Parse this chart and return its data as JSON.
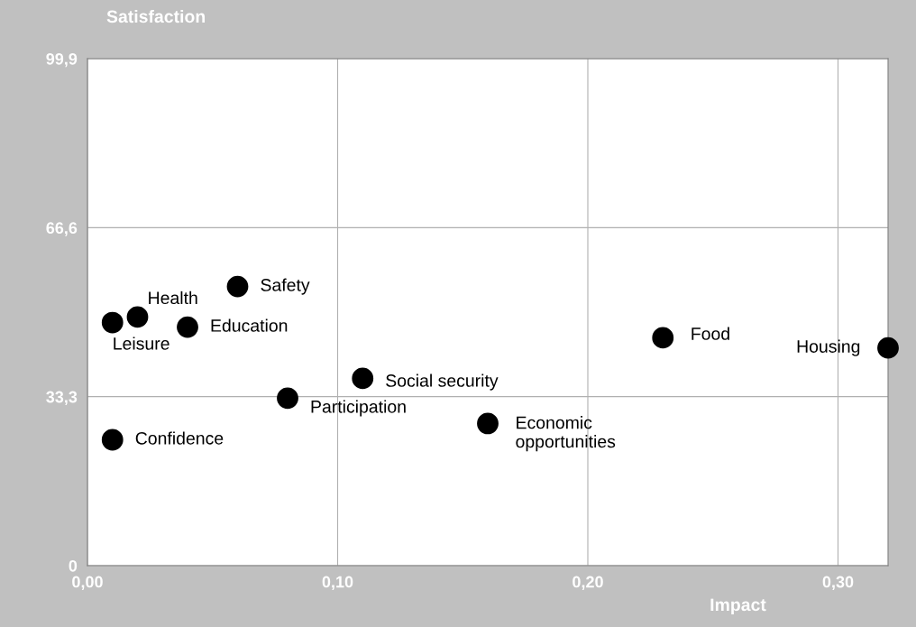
{
  "chart_data": {
    "type": "scatter",
    "xlabel": "Impact",
    "ylabel": "Satisfaction",
    "series": [
      {
        "name": "Leisure",
        "color": "#000000",
        "x": [
          0.01
        ],
        "values": [
          47.9
        ]
      },
      {
        "name": "Health",
        "color": "#000000",
        "x": [
          0.02
        ],
        "values": [
          49.0
        ]
      },
      {
        "name": "Education",
        "color": "#000000",
        "x": [
          0.04
        ],
        "values": [
          47.0
        ]
      },
      {
        "name": "Safety",
        "color": "#000000",
        "x": [
          0.06
        ],
        "values": [
          55.0
        ]
      },
      {
        "name": "Participation",
        "color": "#000000",
        "x": [
          0.08
        ],
        "values": [
          33.0
        ]
      },
      {
        "name": "Social security",
        "color": "#000000",
        "x": [
          0.11
        ],
        "values": [
          36.9
        ]
      },
      {
        "name": "Confidence",
        "color": "#000000",
        "x": [
          0.01
        ],
        "values": [
          24.8
        ]
      },
      {
        "name": "Economic\nopportunities",
        "color": "#000000",
        "x": [
          0.16
        ],
        "values": [
          28.0
        ]
      },
      {
        "name": "Food",
        "color": "#000000",
        "x": [
          0.23
        ],
        "values": [
          44.9
        ]
      },
      {
        "name": "Housing",
        "color": "#000000",
        "x": [
          0.32
        ],
        "values": [
          42.9
        ]
      }
    ],
    "xlim": [
      0,
      0.32
    ],
    "xticks": [
      {
        "value": 0,
        "label": "0,00"
      },
      {
        "value": 0.1,
        "label": "0,10"
      },
      {
        "value": 0.2,
        "label": "0,20"
      },
      {
        "value": 0.3,
        "label": "0,30"
      }
    ],
    "ylim": [
      0,
      99.9
    ],
    "yticks": [
      0,
      {
        "value": 33.3,
        "label": "33,3"
      },
      {
        "value": 66.6,
        "label": "66,6"
      },
      {
        "value": 99.9,
        "label": "99,9"
      }
    ],
    "grid": true,
    "marker": "circle"
  }
}
